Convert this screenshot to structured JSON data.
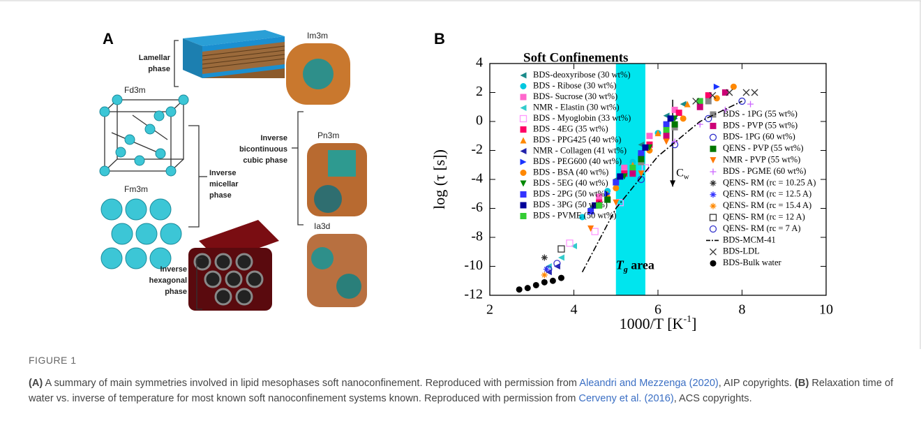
{
  "panel_a": {
    "label": "A",
    "labels": [
      {
        "lines": [
          "Lamellar",
          "phase"
        ]
      },
      {
        "lines": [
          "Fd3m"
        ]
      },
      {
        "lines": [
          "Im3m"
        ]
      },
      {
        "lines": [
          "Pn3m"
        ]
      },
      {
        "lines": [
          "Inverse",
          "bicontinuous",
          "cubic phase"
        ]
      },
      {
        "lines": [
          "Inverse",
          "micellar",
          "phase"
        ]
      },
      {
        "lines": [
          "Fm3m"
        ]
      },
      {
        "lines": [
          "Ia3d"
        ]
      },
      {
        "lines": [
          "Inverse",
          "hexagonal",
          "phase"
        ]
      }
    ]
  },
  "chart_data": {
    "type": "scatter",
    "panel_label": "B",
    "title": "Soft Confinements",
    "y_label": "log (τ [s])",
    "x_label": {
      "main": "1000/T [K",
      "sup": "-1",
      "rest": "]"
    },
    "xlim": [
      2,
      10
    ],
    "ylim": [
      -12,
      4
    ],
    "xticks": [
      2,
      4,
      6,
      8,
      10
    ],
    "yticks": [
      -12,
      -10,
      -8,
      -6,
      -4,
      -2,
      0,
      2,
      4
    ],
    "highlight": {
      "xrange": [
        5.0,
        5.7
      ],
      "color": "#00e5ee"
    },
    "annotations": {
      "tg": {
        "main": "T",
        "sub": "g",
        "rest": " area"
      },
      "cw": {
        "main": "C",
        "sub": "w",
        "arrow_x": 6.35,
        "arrow_y": [
          1.5,
          -4.5
        ]
      }
    },
    "series": [
      {
        "name": "BDS-deoxyribose (30 wt%)",
        "color": "#1a8a8a",
        "marker": "triangle-left",
        "x": [
          4.4,
          5.0,
          5.6,
          6.2,
          6.6
        ],
        "values": [
          -6,
          -4,
          -1.6,
          0.4,
          1.2
        ]
      },
      {
        "name": "BDS - Ribose (30 wt%)",
        "color": "#00c8e0",
        "marker": "circle",
        "x": [
          4.2,
          4.8,
          5.4,
          6.0
        ],
        "values": [
          -6.6,
          -4.8,
          -2.8,
          -0.8
        ]
      },
      {
        "name": "BDS- Sucrose (30 wt%)",
        "color": "#ff66cc",
        "marker": "square",
        "x": [
          4.6,
          5.2,
          5.8,
          6.4
        ],
        "values": [
          -5.2,
          -3.2,
          -1.0,
          0.8
        ]
      },
      {
        "name": "NMR - Elastin (30 wt%)",
        "color": "#33cccc",
        "marker": "triangle-left",
        "x": [
          3.4,
          3.7,
          4.0
        ],
        "values": [
          -10,
          -9.4,
          -8.6
        ]
      },
      {
        "name": "BDS - Myoglobin (33 wt%)",
        "color": "#ff99ff",
        "marker": "open-square",
        "x": [
          3.9,
          4.5,
          5.1,
          5.7
        ],
        "values": [
          -8.4,
          -7.6,
          -5.6,
          -3.2
        ]
      },
      {
        "name": "BDS - 4EG (35 wt%)",
        "color": "#ff0066",
        "marker": "square",
        "x": [
          4.6,
          5.2,
          5.8,
          6.5,
          7.2
        ],
        "values": [
          -5.6,
          -3.6,
          -1.6,
          0.6,
          1.8
        ]
      },
      {
        "name": "BDS - PPG425 (40 wt%)",
        "color": "#ff8800",
        "marker": "triangle-up",
        "x": [
          4.8,
          5.4,
          6.0,
          6.7
        ],
        "values": [
          -5.0,
          -3.0,
          -0.8,
          1.2
        ]
      },
      {
        "name": "NMR - Collagen (41 wt%)",
        "color": "#2222aa",
        "marker": "triangle-left",
        "x": [
          3.4,
          3.6
        ],
        "values": [
          -10.4,
          -10
        ]
      },
      {
        "name": "BDS - PEG600 (40 wt%)",
        "color": "#1a33ff",
        "marker": "triangle-right",
        "x": [
          4.8,
          5.6,
          6.4,
          7.4
        ],
        "values": [
          -5.0,
          -2.4,
          0.2,
          2.4
        ]
      },
      {
        "name": "BDS - BSA (40 wt%)",
        "color": "#ff8800",
        "marker": "circle",
        "x": [
          5.0,
          5.8,
          6.6,
          7.4,
          7.8
        ],
        "values": [
          -4.6,
          -2.0,
          0.2,
          1.6,
          2.4
        ]
      },
      {
        "name": "BDS - 5EG (40 wt%)",
        "color": "#008800",
        "marker": "triangle-down",
        "x": [
          4.6,
          5.2,
          5.8,
          6.4
        ],
        "values": [
          -5.8,
          -3.8,
          -1.8,
          0.2
        ]
      },
      {
        "name": "BDS - 2PG (50 wt%)",
        "color": "#3333ff",
        "marker": "square",
        "x": [
          4.4,
          5.0,
          5.6,
          6.2
        ],
        "values": [
          -6.2,
          -4.2,
          -2.2,
          -0.2
        ]
      },
      {
        "name": "BDS - 3PG (50 wt%)",
        "color": "#000099",
        "marker": "square",
        "x": [
          4.5,
          5.1,
          5.7,
          6.3
        ],
        "values": [
          -5.8,
          -3.8,
          -1.8,
          0.2
        ]
      },
      {
        "name": "BDS - PVME (50 wt%)",
        "color": "#33cc33",
        "marker": "square",
        "x": [
          4.6,
          5.4,
          6.2,
          7.0
        ],
        "values": [
          -5.8,
          -3.2,
          -0.6,
          1.4
        ]
      },
      {
        "name": "BDS - 1PG (55 wt%)",
        "color": "#888888",
        "marker": "square",
        "x": [
          4.8,
          5.6,
          6.4,
          7.2
        ],
        "values": [
          -5.4,
          -2.8,
          -0.4,
          1.4
        ]
      },
      {
        "name": "BDS - PVP (55 wt%)",
        "color": "#cc0077",
        "marker": "square",
        "x": [
          5.4,
          6.2,
          7.0,
          7.6
        ],
        "values": [
          -3.6,
          -1.0,
          1.0,
          2.0
        ]
      },
      {
        "name": "BDS- 1PG (60 wt%)",
        "color": "#3333cc",
        "marker": "open-circle",
        "x": [
          5.6,
          6.4,
          7.2,
          8.0
        ],
        "values": [
          -4.0,
          -1.6,
          0.2,
          1.4
        ]
      },
      {
        "name": "QENS - PVP (55 wt%)",
        "color": "#007700",
        "marker": "square",
        "x": [
          4.8,
          5.6,
          6.4
        ],
        "values": [
          -5.4,
          -2.6,
          -0.2
        ]
      },
      {
        "name": "NMR - PVP (55 wt%)",
        "color": "#ff7700",
        "marker": "triangle-down",
        "x": [
          4.4,
          5.0,
          5.6,
          6.2
        ],
        "values": [
          -7.4,
          -5.6,
          -3.6,
          -1.4
        ]
      },
      {
        "name": "BDS - PGME (60 wt%)",
        "color": "#cc66ff",
        "marker": "plus",
        "x": [
          6.4,
          7.0,
          7.6,
          8.2
        ],
        "values": [
          -1.4,
          -0.2,
          0.8,
          1.2
        ]
      },
      {
        "name": "QENS- RM (rc = 10.25 A)",
        "color": "#333333",
        "marker": "asterisk",
        "x": [
          3.3
        ],
        "values": [
          -9.4
        ]
      },
      {
        "name": "QENS- RM (rc = 12.5 A)",
        "color": "#3333ff",
        "marker": "asterisk",
        "x": [
          3.35
        ],
        "values": [
          -10.2
        ]
      },
      {
        "name": "QENS- RM (rc = 15.4 A)",
        "color": "#ff8800",
        "marker": "asterisk",
        "x": [
          3.3
        ],
        "values": [
          -10.6
        ]
      },
      {
        "name": "QENS- RM (rc = 12 A)",
        "color": "#333333",
        "marker": "open-square",
        "x": [
          3.7
        ],
        "values": [
          -8.8
        ]
      },
      {
        "name": "QENS- RM (rc = 7 A)",
        "color": "#3333cc",
        "marker": "open-circle",
        "x": [
          3.4,
          3.6
        ],
        "values": [
          -10.2,
          -9.8
        ]
      },
      {
        "name": "BDS-MCM-41",
        "color": "#000000",
        "marker": "dash-dot-line",
        "x": [
          4.2,
          5.0,
          6.0,
          7.0,
          8.0
        ],
        "values": [
          -10.4,
          -6,
          -2.4,
          0,
          1.4
        ]
      },
      {
        "name": "BDS-LDL",
        "color": "#333333",
        "marker": "cross",
        "x": [
          6.9,
          7.3,
          7.7,
          8.1,
          8.3
        ],
        "values": [
          1.4,
          1.8,
          2.0,
          2.0,
          2.0
        ]
      },
      {
        "name": "BDS-Bulk water",
        "color": "#000000",
        "marker": "circle",
        "x": [
          2.7,
          2.9,
          3.1,
          3.3,
          3.5,
          3.7
        ],
        "values": [
          -11.6,
          -11.5,
          -11.3,
          -11.1,
          -11.0,
          -10.8
        ]
      }
    ]
  },
  "caption": {
    "label": "FIGURE 1",
    "segments": [
      {
        "text": "(A)",
        "style": "bold"
      },
      {
        "text": " A summary of main symmetries involved in lipid mesophases soft nanoconfinement. Reproduced with permission from ",
        "style": "plain"
      },
      {
        "text": "Aleandri and Mezzenga (2020)",
        "style": "link"
      },
      {
        "text": ", AIP copyrights. ",
        "style": "plain"
      },
      {
        "text": "(B)",
        "style": "bold"
      },
      {
        "text": " Relaxation time of water vs. inverse of temperature for most known soft nanoconfinement systems known. Reproduced with permission from ",
        "style": "plain"
      },
      {
        "text": "Cerveny et al. (2016)",
        "style": "link"
      },
      {
        "text": ", ACS copyrights.",
        "style": "plain"
      }
    ]
  }
}
